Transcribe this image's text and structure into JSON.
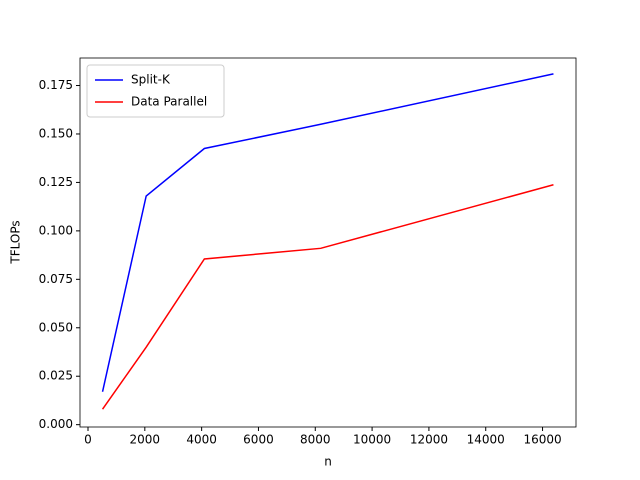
{
  "chart_data": {
    "type": "line",
    "xlabel": "n",
    "ylabel": "TFLOPs",
    "x": [
      512,
      2048,
      4096,
      8192,
      16384
    ],
    "series": [
      {
        "name": "Split-K",
        "color": "#0000ff",
        "values": [
          0.017,
          0.118,
          0.1425,
          0.155,
          0.181
        ]
      },
      {
        "name": "Data Parallel",
        "color": "#ff0000",
        "values": [
          0.008,
          0.04,
          0.0855,
          0.091,
          0.1238
        ]
      }
    ],
    "xlim": [
      -281.6,
      17177.6
    ],
    "ylim": [
      -0.0012,
      0.1892
    ],
    "xticks": [
      0,
      2000,
      4000,
      6000,
      8000,
      10000,
      12000,
      14000,
      16000
    ],
    "yticks": [
      {
        "value": 0,
        "label": "0.000"
      },
      {
        "value": 0.025,
        "label": "0.025"
      },
      {
        "value": 0.05,
        "label": "0.050"
      },
      {
        "value": 0.075,
        "label": "0.075"
      },
      {
        "value": 0.1,
        "label": "0.100"
      },
      {
        "value": 0.125,
        "label": "0.125"
      },
      {
        "value": 0.15,
        "label": "0.150"
      },
      {
        "value": 0.175,
        "label": "0.175"
      }
    ],
    "legend": "upper left"
  }
}
